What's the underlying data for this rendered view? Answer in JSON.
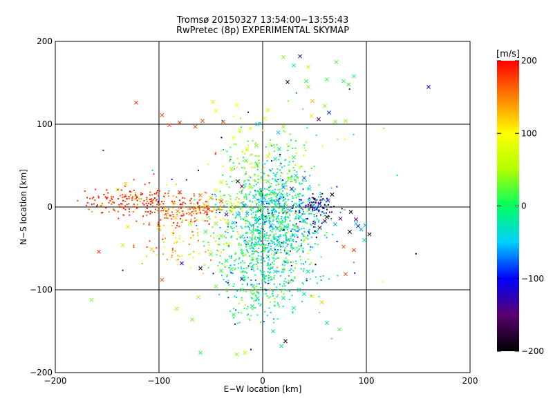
{
  "chart_data": {
    "type": "scatter",
    "title": "Tromsø 20150327 13:54:00−13:55:43",
    "subtitle": "RwPretec (8p) EXPERIMENTAL SKYMAP",
    "xlabel": "E−W location [km]",
    "ylabel": "N−S location [km]",
    "xlim": [
      -200,
      200
    ],
    "ylim": [
      -200,
      200
    ],
    "xticks": [
      -200,
      -100,
      0,
      100,
      200
    ],
    "yticks": [
      -200,
      -100,
      0,
      100,
      200
    ],
    "xtick_labels": [
      "−200",
      "−100",
      "0",
      "100",
      "200"
    ],
    "ytick_labels": [
      "−200",
      "−100",
      "0",
      "100",
      "200"
    ],
    "grid_lines": [
      -100,
      0,
      100
    ],
    "colorbar": {
      "label": "[m/s]",
      "range": [
        -200,
        200
      ],
      "ticks": [
        200,
        100,
        0,
        -100,
        -200
      ],
      "tick_labels": [
        "200",
        "100",
        "0",
        "−100",
        "−200"
      ],
      "colormap": [
        "#000000",
        "#5a0070",
        "#0000ff",
        "#00d0ff",
        "#00ff60",
        "#b0ff00",
        "#ffff00",
        "#ff8000",
        "#ff0000"
      ]
    },
    "marker_legend": {
      "cross": "x",
      "dot": "·"
    },
    "series": [
      {
        "marker": "x",
        "points": [
          [
            -122,
            126,
            180
          ],
          [
            -97,
            111,
            175
          ],
          [
            -80,
            102,
            180
          ],
          [
            -58,
            104,
            170
          ],
          [
            -38,
            103,
            170
          ],
          [
            -65,
            97,
            175
          ],
          [
            -48,
            127,
            110
          ],
          [
            -45,
            116,
            90
          ],
          [
            -25,
            123,
            100
          ],
          [
            -90,
            99,
            170
          ],
          [
            -80,
            18,
            190
          ],
          [
            -82,
            -5,
            150
          ],
          [
            -84,
            -13,
            120
          ],
          [
            -70,
            -8,
            160
          ],
          [
            -55,
            -6,
            180
          ],
          [
            -50,
            11,
            140
          ],
          [
            -60,
            14,
            150
          ],
          [
            -45,
            20,
            90
          ],
          [
            -40,
            7,
            180
          ],
          [
            -30,
            -6,
            110
          ],
          [
            -132,
            28,
            120
          ],
          [
            -140,
            21,
            60
          ],
          [
            -130,
            -24,
            110
          ],
          [
            -100,
            -25,
            130
          ],
          [
            -107,
            -51,
            120
          ],
          [
            -158,
            -54,
            180
          ],
          [
            -135,
            -46,
            60
          ],
          [
            -165,
            -112,
            40
          ],
          [
            -97,
            -88,
            170
          ],
          [
            -83,
            -123,
            40
          ],
          [
            -68,
            -136,
            30
          ],
          [
            -60,
            -176,
            10
          ],
          [
            -40,
            -77,
            10
          ],
          [
            -20,
            -87,
            -130
          ],
          [
            -17,
            -176,
            60
          ],
          [
            -25,
            -178,
            40
          ],
          [
            -70,
            -20,
            60
          ],
          [
            -60,
            -74,
            -200
          ],
          [
            -78,
            -68,
            -130
          ],
          [
            -45,
            -96,
            30
          ],
          [
            -62,
            -109,
            40
          ],
          [
            -20,
            -54,
            10
          ],
          [
            -30,
            -75,
            -20
          ],
          [
            -10,
            -30,
            -10
          ],
          [
            5,
            -60,
            -30
          ],
          [
            15,
            -40,
            -40
          ],
          [
            22,
            -66,
            -20
          ],
          [
            30,
            -50,
            30
          ],
          [
            40,
            -105,
            -30
          ],
          [
            30,
            -122,
            -10
          ],
          [
            10,
            -150,
            -20
          ],
          [
            18,
            -168,
            -30
          ],
          [
            22,
            -162,
            -200
          ],
          [
            48,
            -108,
            90
          ],
          [
            57,
            -115,
            120
          ],
          [
            62,
            -140,
            -20
          ],
          [
            74,
            -148,
            20
          ],
          [
            20,
            181,
            40
          ],
          [
            36,
            182,
            -140
          ],
          [
            30,
            171,
            -20
          ],
          [
            44,
            169,
            60
          ],
          [
            42,
            152,
            10
          ],
          [
            44,
            145,
            40
          ],
          [
            48,
            128,
            130
          ],
          [
            62,
            154,
            20
          ],
          [
            71,
            175,
            20
          ],
          [
            78,
            152,
            10
          ],
          [
            60,
            122,
            40
          ],
          [
            70,
            103,
            30
          ],
          [
            83,
            148,
            10
          ],
          [
            88,
            158,
            10
          ],
          [
            47,
            110,
            70
          ],
          [
            64,
            114,
            -90
          ],
          [
            54,
            106,
            -160
          ],
          [
            80,
            104,
            40
          ],
          [
            24,
            151,
            -200
          ],
          [
            20,
            97,
            40
          ],
          [
            62,
            -12,
            -200
          ],
          [
            70,
            -21,
            -60
          ],
          [
            85,
            -6,
            -200
          ],
          [
            90,
            -15,
            -150
          ],
          [
            92,
            -23,
            -110
          ],
          [
            90,
            -20,
            -50
          ],
          [
            95,
            -27,
            -60
          ],
          [
            99,
            -22,
            -60
          ],
          [
            84,
            -30,
            -200
          ],
          [
            103,
            -33,
            -200
          ],
          [
            98,
            -40,
            -30
          ],
          [
            88,
            -52,
            180
          ],
          [
            78,
            -48,
            170
          ],
          [
            80,
            -81,
            170
          ],
          [
            160,
            145,
            -110
          ],
          [
            20,
            24,
            -80
          ],
          [
            40,
            35,
            -80
          ],
          [
            47,
            0,
            -190
          ],
          [
            55,
            4,
            -160
          ],
          [
            63,
            8,
            -140
          ],
          [
            67,
            15,
            -200
          ],
          [
            75,
            -14,
            -140
          ],
          [
            60,
            -17,
            -160
          ],
          [
            55,
            -25,
            -160
          ],
          [
            52,
            -30,
            -40
          ],
          [
            42,
            -37,
            40
          ],
          [
            -35,
            -9,
            -130
          ],
          [
            -24,
            31,
            -200
          ],
          [
            -20,
            25,
            -150
          ],
          [
            -5,
            50,
            60
          ],
          [
            5,
            61,
            60
          ],
          [
            -15,
            70,
            80
          ],
          [
            -28,
            84,
            100
          ],
          [
            -22,
            93,
            90
          ],
          [
            -12,
            95,
            80
          ],
          [
            2,
            107,
            80
          ],
          [
            5,
            117,
            70
          ],
          [
            8,
            75,
            60
          ],
          [
            12,
            58,
            -40
          ],
          [
            10,
            -10,
            10
          ],
          [
            18,
            -20,
            -30
          ],
          [
            -2,
            -36,
            20
          ],
          [
            12,
            -78,
            -40
          ],
          [
            -8,
            -98,
            30
          ],
          [
            35,
            -100,
            -20
          ],
          [
            -5,
            -110,
            -20
          ],
          [
            26,
            -90,
            30
          ],
          [
            44,
            -78,
            -20
          ],
          [
            -40,
            -35,
            30
          ],
          [
            -50,
            -57,
            20
          ],
          [
            -10,
            -120,
            -10
          ],
          [
            -28,
            -130,
            10
          ],
          [
            -33,
            -45,
            80
          ],
          [
            -15,
            -8,
            -60
          ],
          [
            0,
            5,
            -70
          ],
          [
            -5,
            -14,
            -40
          ],
          [
            8,
            -22,
            -60
          ],
          [
            14,
            8,
            -70
          ],
          [
            26,
            -4,
            -60
          ],
          [
            -10,
            -62,
            30
          ],
          [
            -3,
            -4,
            -200
          ],
          [
            28,
            22,
            -120
          ],
          [
            34,
            1,
            -50
          ],
          [
            36,
            -12,
            -40
          ],
          [
            24,
            -24,
            -30
          ],
          [
            14,
            -26,
            -30
          ],
          [
            -8,
            12,
            -30
          ],
          [
            -12,
            24,
            40
          ],
          [
            -2,
            17,
            30
          ],
          [
            5,
            31,
            20
          ],
          [
            10,
            17,
            -20
          ],
          [
            18,
            12,
            -40
          ],
          [
            -18,
            2,
            -80
          ],
          [
            -24,
            -9,
            -60
          ],
          [
            -28,
            -19,
            -50
          ],
          [
            -20,
            -36,
            -30
          ],
          [
            -6,
            -44,
            -20
          ],
          [
            14,
            -46,
            -30
          ],
          [
            24,
            -40,
            -40
          ],
          [
            30,
            -34,
            -30
          ],
          [
            40,
            -16,
            -20
          ],
          [
            45,
            8,
            -50
          ],
          [
            45,
            22,
            -40
          ],
          [
            32,
            38,
            -30
          ],
          [
            30,
            60,
            10
          ],
          [
            16,
            70,
            -10
          ],
          [
            -6,
            74,
            30
          ],
          [
            -16,
            56,
            20
          ],
          [
            -30,
            46,
            40
          ],
          [
            -40,
            30,
            60
          ],
          [
            -5,
            100,
            -50
          ],
          [
            15,
            90,
            -40
          ],
          [
            -45,
            -20,
            40
          ],
          [
            -55,
            -30,
            20
          ],
          [
            -35,
            -65,
            0
          ],
          [
            0,
            -80,
            -40
          ],
          [
            20,
            -110,
            -10
          ],
          [
            -20,
            -100,
            0
          ]
        ]
      },
      {
        "marker": "dot",
        "seed": 20150327,
        "clusters": [
          {
            "cx": -155,
            "cy": 8,
            "sx": 10,
            "sy": 7,
            "n": 35,
            "vmean": 185,
            "vsd": 15
          },
          {
            "cx": -130,
            "cy": 8,
            "sx": 12,
            "sy": 9,
            "n": 70,
            "vmean": 180,
            "vsd": 18
          },
          {
            "cx": -108,
            "cy": 8,
            "sx": 10,
            "sy": 10,
            "n": 60,
            "vmean": 175,
            "vsd": 20
          },
          {
            "cx": -90,
            "cy": -2,
            "sx": 12,
            "sy": 12,
            "n": 60,
            "vmean": 165,
            "vsd": 25
          },
          {
            "cx": -72,
            "cy": -3,
            "sx": 10,
            "sy": 10,
            "n": 55,
            "vmean": 155,
            "vsd": 35
          },
          {
            "cx": -55,
            "cy": 0,
            "sx": 8,
            "sy": 8,
            "n": 45,
            "vmean": 145,
            "vsd": 40
          },
          {
            "cx": -95,
            "cy": -40,
            "sx": 15,
            "sy": 15,
            "n": 40,
            "vmean": 140,
            "vsd": 40
          },
          {
            "cx": -70,
            "cy": -45,
            "sx": 12,
            "sy": 15,
            "n": 35,
            "vmean": 110,
            "vsd": 45
          },
          {
            "cx": -30,
            "cy": 2,
            "sx": 10,
            "sy": 10,
            "n": 80,
            "vmean": 40,
            "vsd": 50
          },
          {
            "cx": 10,
            "cy": -5,
            "sx": 18,
            "sy": 25,
            "n": 550,
            "vmean": -20,
            "vsd": 35
          },
          {
            "cx": 5,
            "cy": -45,
            "sx": 18,
            "sy": 22,
            "n": 220,
            "vmean": -25,
            "vsd": 35
          },
          {
            "cx": 0,
            "cy": -85,
            "sx": 20,
            "sy": 18,
            "n": 170,
            "vmean": -15,
            "vsd": 35
          },
          {
            "cx": -5,
            "cy": -120,
            "sx": 15,
            "sy": 12,
            "n": 60,
            "vmean": -5,
            "vsd": 30
          },
          {
            "cx": -10,
            "cy": 45,
            "sx": 15,
            "sy": 25,
            "n": 90,
            "vmean": 40,
            "vsd": 30
          },
          {
            "cx": 25,
            "cy": 50,
            "sx": 15,
            "sy": 20,
            "n": 70,
            "vmean": 20,
            "vsd": 35
          },
          {
            "cx": 50,
            "cy": 2,
            "sx": 10,
            "sy": 8,
            "n": 90,
            "vmean": -100,
            "vsd": 55
          },
          {
            "cx": 45,
            "cy": -20,
            "sx": 10,
            "sy": 12,
            "n": 50,
            "vmean": -60,
            "vsd": 60
          },
          {
            "cx": -35,
            "cy": -50,
            "sx": 15,
            "sy": 20,
            "n": 70,
            "vmean": 10,
            "vsd": 45
          },
          {
            "cx": 35,
            "cy": -60,
            "sx": 15,
            "sy": 20,
            "n": 60,
            "vmean": -20,
            "vsd": 40
          },
          {
            "cx": 0,
            "cy": 0,
            "sx": 70,
            "sy": 70,
            "n": 80,
            "vmean": 0,
            "vsd": 120
          }
        ]
      }
    ]
  }
}
